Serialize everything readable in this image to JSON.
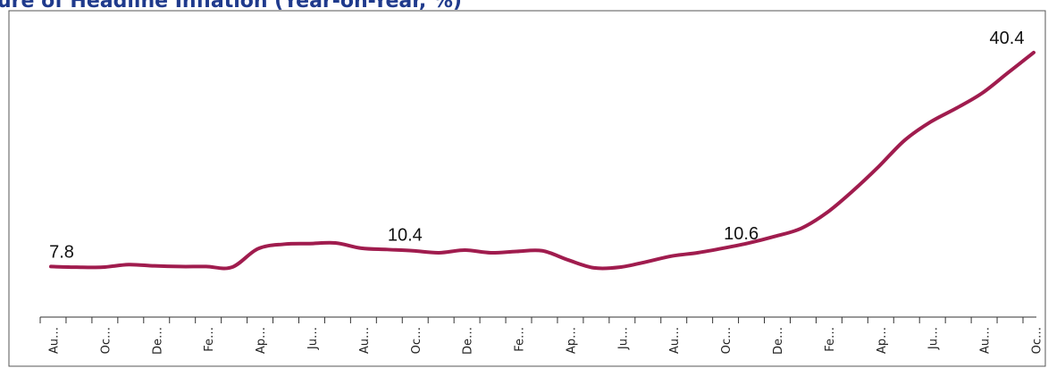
{
  "chart_data": {
    "type": "line",
    "title": "ure of Headline Inflation (Year-on-Year, %)",
    "categories": [
      "Au…",
      null,
      "Oc…",
      null,
      "De…",
      null,
      "Fe…",
      null,
      "Ap…",
      null,
      "Ju…",
      null,
      "Au…",
      null,
      "Oc…",
      null,
      "De…",
      null,
      "Fe…",
      null,
      "Ap…",
      null,
      "Ju…",
      null,
      "Au…",
      null,
      "Oc…",
      null,
      "De…",
      null,
      "Fe…",
      null,
      "Ap…",
      null,
      "Ju…",
      null,
      "Au…",
      null,
      "Oc…"
    ],
    "series": [
      {
        "name": null,
        "color": "#a01c4e",
        "values": [
          7.8,
          7.7,
          7.7,
          8.1,
          7.9,
          7.8,
          7.8,
          7.7,
          10.5,
          11.2,
          11.3,
          11.4,
          10.6,
          10.4,
          10.2,
          9.9,
          10.3,
          9.9,
          10.1,
          10.2,
          8.8,
          7.6,
          7.7,
          8.5,
          9.4,
          9.9,
          10.6,
          11.4,
          12.4,
          13.6,
          16.0,
          19.3,
          23.0,
          27.0,
          29.8,
          31.9,
          34.2,
          37.3,
          40.4
        ],
        "value_labels": [
          "7.8",
          null,
          null,
          null,
          null,
          null,
          null,
          null,
          null,
          null,
          null,
          null,
          null,
          "10.4",
          null,
          null,
          null,
          null,
          null,
          null,
          null,
          null,
          null,
          null,
          null,
          null,
          "10.6",
          null,
          null,
          null,
          null,
          null,
          null,
          null,
          null,
          null,
          null,
          null,
          "40.4"
        ]
      }
    ],
    "ylim": [
      5,
      45
    ]
  }
}
